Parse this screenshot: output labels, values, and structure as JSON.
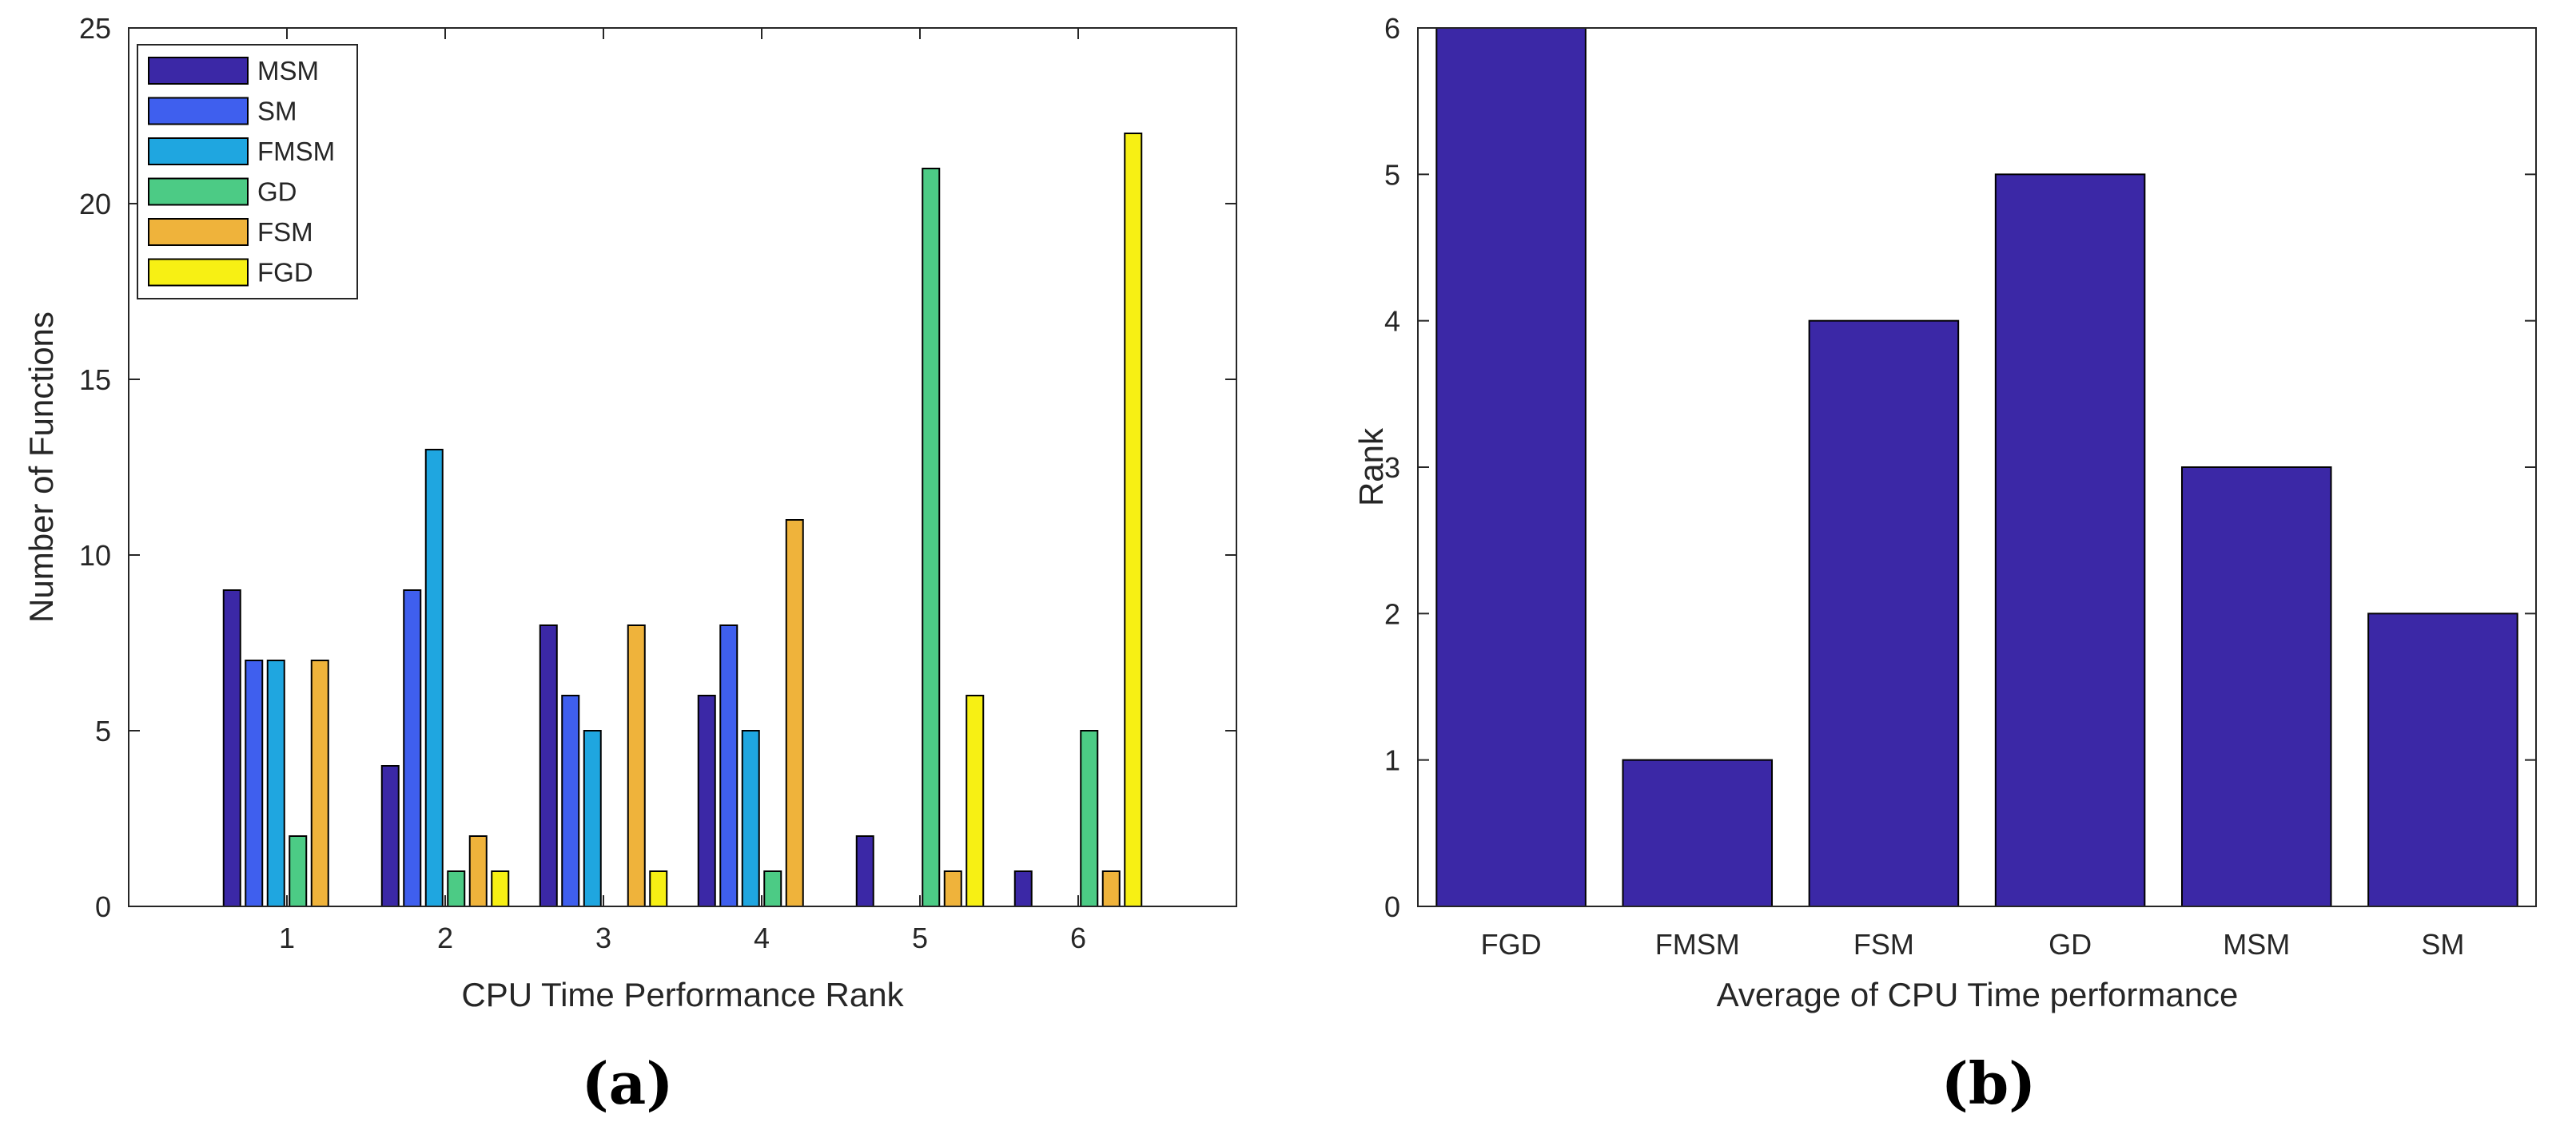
{
  "chart_data": [
    {
      "type": "bar",
      "panel_label": "(a)",
      "title": "",
      "xlabel": "CPU Time Performance Rank",
      "ylabel": "Number of Functions",
      "categories": [
        "1",
        "2",
        "3",
        "4",
        "5",
        "6"
      ],
      "ylim": [
        0,
        25
      ],
      "yticks": [
        0,
        5,
        10,
        15,
        20,
        25
      ],
      "legend_position": "top-left",
      "series": [
        {
          "name": "MSM",
          "color": "#3b28a6",
          "values": [
            9,
            4,
            8,
            6,
            2,
            1
          ]
        },
        {
          "name": "SM",
          "color": "#3f5fee",
          "values": [
            7,
            9,
            6,
            8,
            0,
            0
          ]
        },
        {
          "name": "FMSM",
          "color": "#1fa6e0",
          "values": [
            7,
            13,
            5,
            5,
            0,
            0
          ]
        },
        {
          "name": "GD",
          "color": "#4ccb85",
          "values": [
            2,
            1,
            0,
            1,
            21,
            5
          ]
        },
        {
          "name": "FSM",
          "color": "#efb33b",
          "values": [
            7,
            2,
            8,
            11,
            1,
            1
          ]
        },
        {
          "name": "FGD",
          "color": "#f7f014",
          "values": [
            0,
            1,
            1,
            0,
            6,
            22
          ]
        }
      ]
    },
    {
      "type": "bar",
      "panel_label": "(b)",
      "title": "",
      "xlabel": "Average of CPU Time performance",
      "ylabel": "Rank",
      "categories": [
        "FGD",
        "FMSM",
        "FSM",
        "GD",
        "MSM",
        "SM"
      ],
      "values": [
        6,
        1,
        4,
        5,
        3,
        2
      ],
      "color": "#3b28a6",
      "ylim": [
        0,
        6
      ],
      "yticks": [
        0,
        1,
        2,
        3,
        4,
        5,
        6
      ]
    }
  ]
}
